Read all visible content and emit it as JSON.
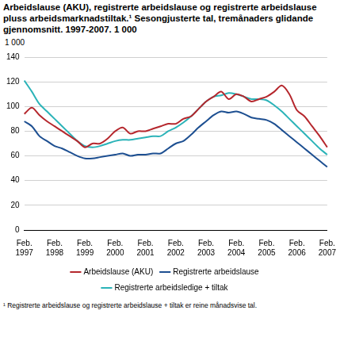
{
  "chart_data": {
    "type": "line",
    "title": "Arbeidslause (AKU), registrerte arbeidslause og registrerte arbeidslause pluss arbeidsmarknadstiltak.¹ Sesongjusterte tal, tremånaders glidande gjennomsnitt. 1997-2007. 1 000",
    "ylabel": "1 000",
    "footnote": "¹ Registrerte arbeidslause og registrerte arbeidslause + tiltak er reine månadsvise tal.",
    "categories": [
      "Feb. 1997",
      null,
      null,
      null,
      "Feb. 1998",
      null,
      null,
      null,
      "Feb. 1999",
      null,
      null,
      null,
      "Feb. 2000",
      null,
      null,
      null,
      "Feb. 2001",
      null,
      null,
      null,
      "Feb. 2002",
      null,
      null,
      null,
      "Feb. 2003",
      null,
      null,
      null,
      "Feb. 2004",
      null,
      null,
      null,
      "Feb. 2005",
      null,
      null,
      null,
      "Feb. 2006",
      null,
      null,
      null,
      "Feb. 2007"
    ],
    "series": [
      {
        "name": "Arbeidslause (AKU)",
        "color": "#b5272d",
        "values": [
          94,
          99,
          93,
          88,
          84,
          80,
          76,
          72,
          67,
          70,
          70,
          74,
          80,
          83,
          78,
          80,
          80,
          82,
          84,
          86,
          86,
          90,
          92,
          98,
          104,
          108,
          112,
          106,
          110,
          108,
          104,
          106,
          108,
          112,
          117,
          110,
          97,
          92,
          84,
          76,
          67
        ]
      },
      {
        "name": "Registrerte arbeidslause",
        "color": "#1d4f91",
        "values": [
          88,
          84,
          76,
          72,
          68,
          66,
          63,
          60,
          58,
          58,
          59,
          60,
          61,
          62,
          60,
          61,
          61,
          62,
          62,
          66,
          70,
          72,
          77,
          83,
          88,
          93,
          96,
          95,
          96,
          94,
          91,
          90,
          89,
          86,
          81,
          76,
          71,
          66,
          61,
          56,
          51
        ]
      },
      {
        "name": "Registrerte arbeidsledige + tiltak",
        "color": "#2bb3b8",
        "values": [
          121,
          112,
          102,
          96,
          90,
          84,
          78,
          72,
          68,
          67,
          68,
          70,
          72,
          73,
          73,
          74,
          75,
          76,
          76,
          80,
          83,
          87,
          92,
          98,
          104,
          108,
          109,
          111,
          110,
          108,
          106,
          106,
          105,
          101,
          96,
          90,
          84,
          78,
          72,
          66,
          61
        ]
      }
    ],
    "ylim": [
      0,
      140
    ],
    "yticks": [
      0,
      20,
      40,
      60,
      80,
      100,
      120,
      140
    ],
    "grid": true,
    "legend": "bottom"
  }
}
